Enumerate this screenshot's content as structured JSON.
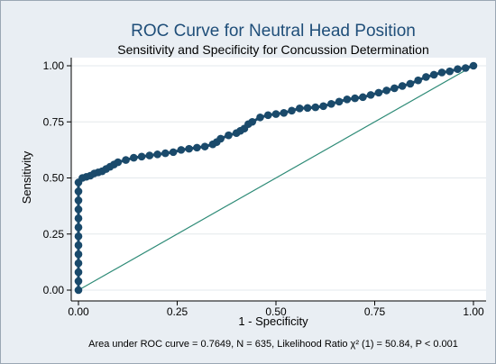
{
  "chart_data": {
    "type": "line",
    "title": "ROC Curve for Neutral Head Position",
    "subtitle": "Sensitivity and Specificity for Concussion Determination",
    "xlabel": "1 - Specificity",
    "ylabel": "Sensitivity",
    "note": "Area under ROC curve = 0.7649, N = 635, Likelihood Ratio χ² (1) = 50.84, P < 0.001",
    "xlim": [
      0,
      1
    ],
    "ylim": [
      0,
      1
    ],
    "x_ticks": [
      "0.00",
      "0.25",
      "0.50",
      "0.75",
      "1.00"
    ],
    "y_ticks": [
      "0.00",
      "0.25",
      "0.50",
      "0.75",
      "1.00"
    ],
    "grid": "horizontal",
    "colors": {
      "roc": "#1a4a6b",
      "reference": "#2e8b77",
      "plot_bg": "#ffffff",
      "outer_bg": "#e9eef3"
    },
    "series": [
      {
        "x": [
          0,
          0,
          0,
          0,
          0,
          0,
          0,
          0,
          0,
          0,
          0,
          0,
          0,
          0.01,
          0.02,
          0.03,
          0.04,
          0.05,
          0.06,
          0.07,
          0.08,
          0.09,
          0.1,
          0.12,
          0.14,
          0.16,
          0.18,
          0.2,
          0.22,
          0.24,
          0.26,
          0.28,
          0.3,
          0.32,
          0.34,
          0.35,
          0.36,
          0.38,
          0.4,
          0.41,
          0.42,
          0.43,
          0.44,
          0.46,
          0.48,
          0.5,
          0.52,
          0.54,
          0.56,
          0.58,
          0.6,
          0.62,
          0.64,
          0.66,
          0.68,
          0.7,
          0.72,
          0.74,
          0.76,
          0.78,
          0.8,
          0.82,
          0.84,
          0.86,
          0.88,
          0.9,
          0.92,
          0.94,
          0.96,
          0.98,
          1.0
        ],
        "y": [
          0,
          0.04,
          0.08,
          0.12,
          0.16,
          0.2,
          0.24,
          0.28,
          0.32,
          0.36,
          0.4,
          0.44,
          0.48,
          0.5,
          0.505,
          0.51,
          0.52,
          0.525,
          0.53,
          0.54,
          0.55,
          0.56,
          0.57,
          0.58,
          0.59,
          0.595,
          0.6,
          0.605,
          0.61,
          0.615,
          0.625,
          0.63,
          0.635,
          0.64,
          0.65,
          0.66,
          0.675,
          0.69,
          0.7,
          0.71,
          0.72,
          0.74,
          0.75,
          0.77,
          0.78,
          0.785,
          0.79,
          0.8,
          0.81,
          0.812,
          0.815,
          0.82,
          0.83,
          0.84,
          0.85,
          0.855,
          0.86,
          0.87,
          0.88,
          0.89,
          0.9,
          0.91,
          0.92,
          0.935,
          0.95,
          0.96,
          0.97,
          0.975,
          0.985,
          0.99,
          1.0
        ]
      },
      {
        "x": [
          0,
          1
        ],
        "y": [
          0,
          1
        ]
      }
    ]
  }
}
